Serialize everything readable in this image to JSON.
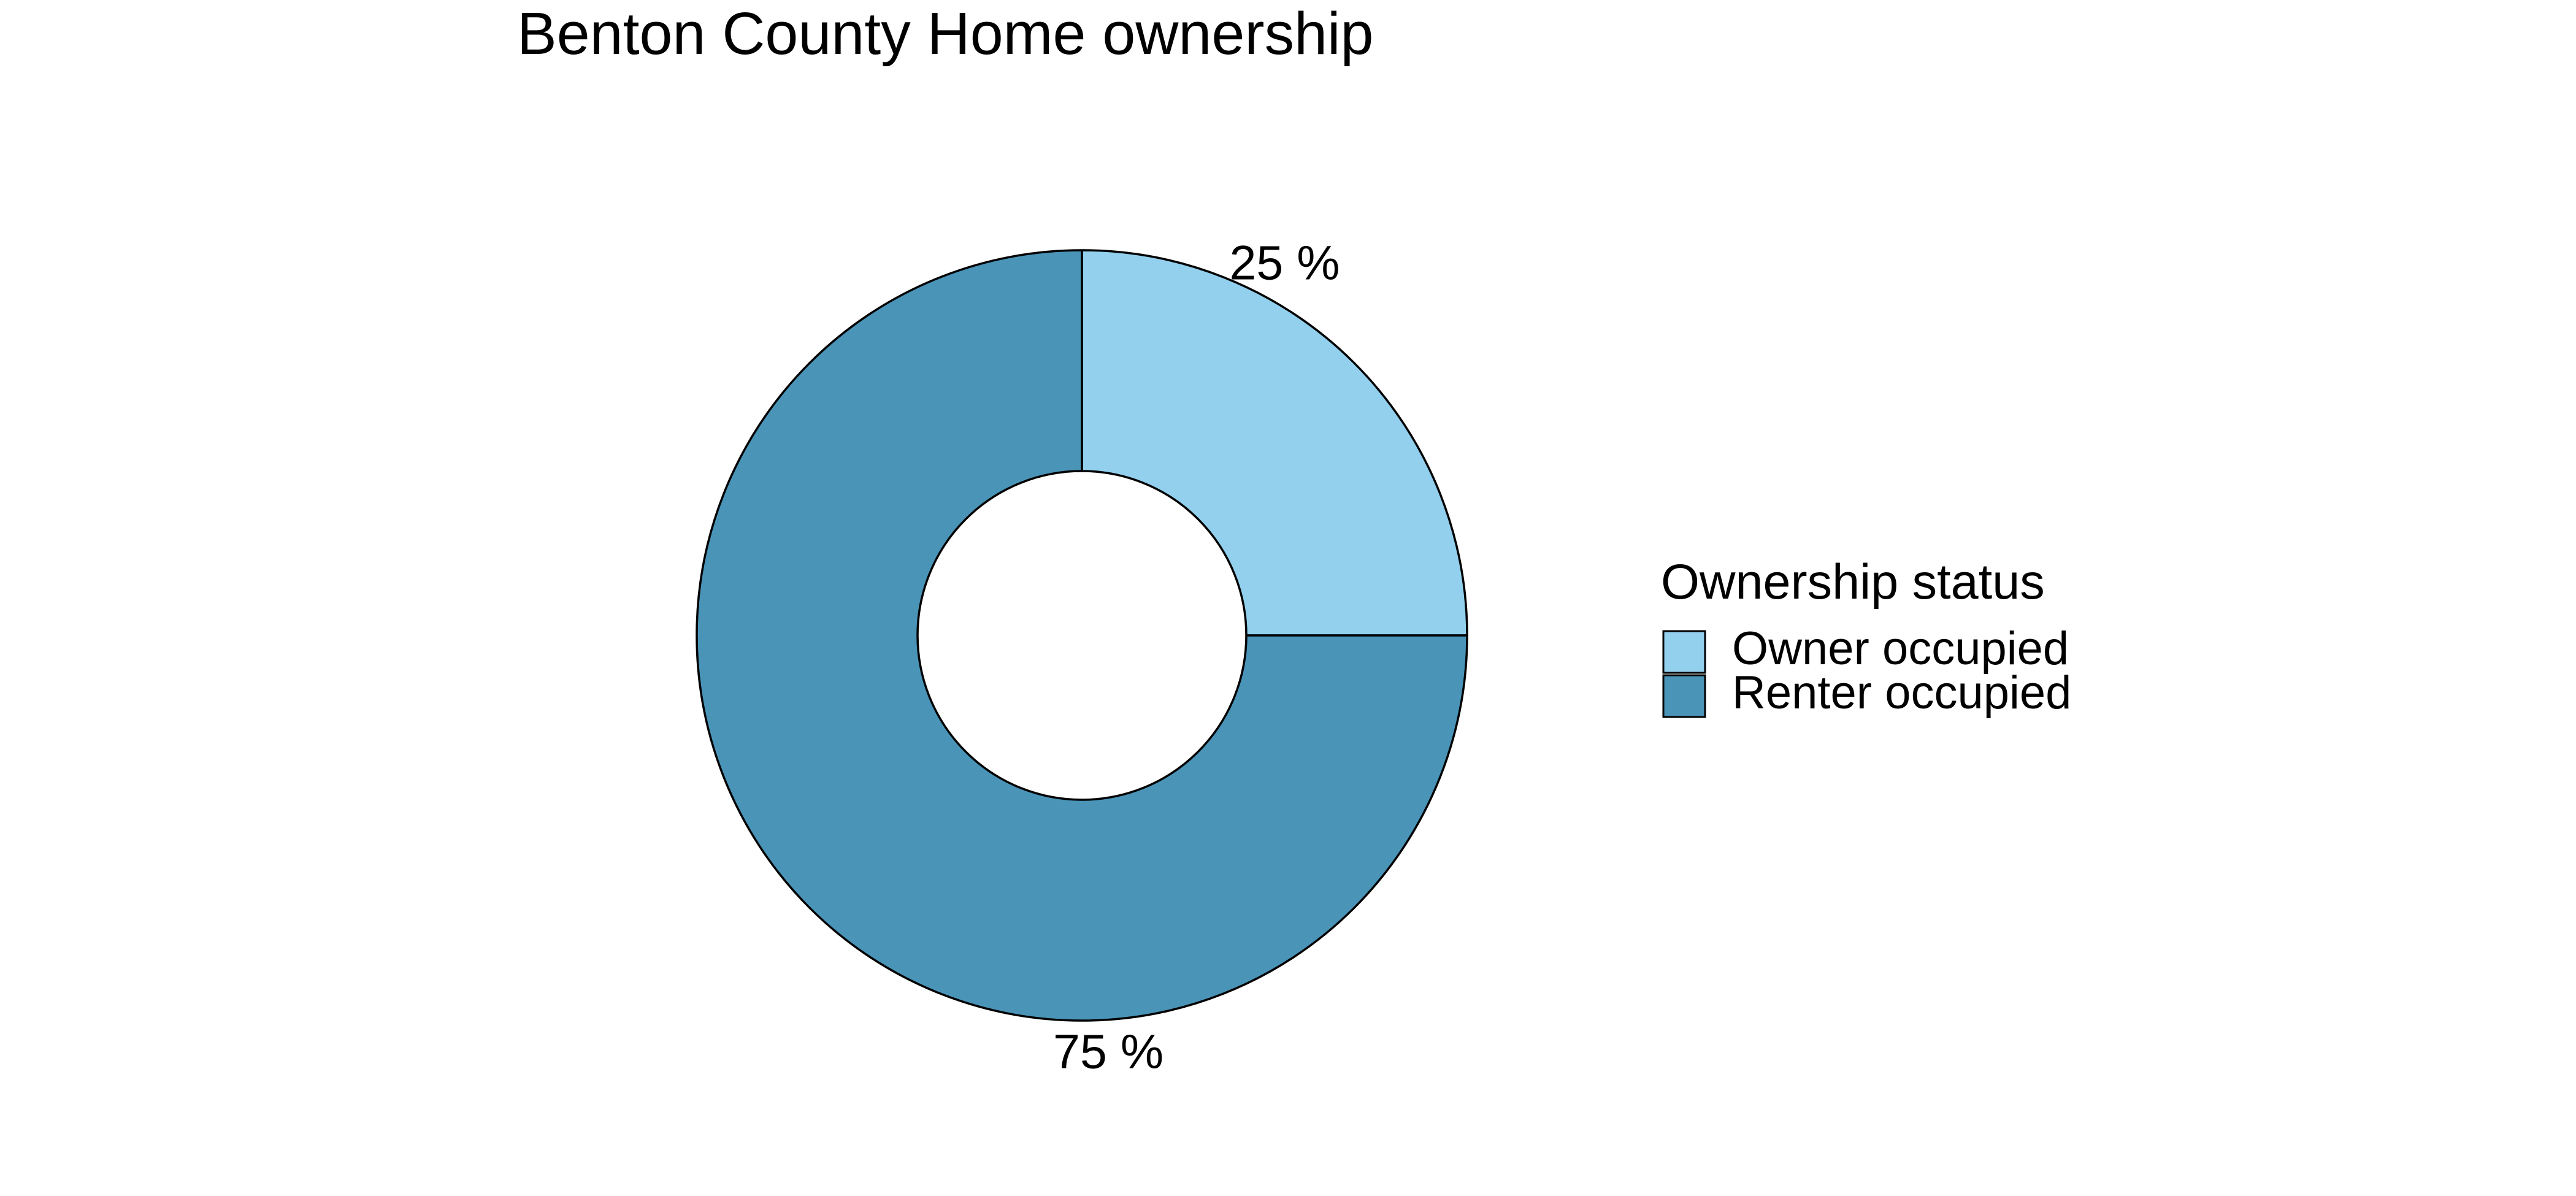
{
  "chart_data": {
    "type": "pie",
    "subtype": "donut",
    "title": "Benton County Home ownership",
    "categories": [
      "Owner occupied",
      "Renter occupied"
    ],
    "values": [
      25,
      75
    ],
    "value_labels": [
      "25 %",
      "75 %"
    ],
    "units": "%",
    "colors": [
      "#92d0ee",
      "#4a94b8"
    ],
    "start": "12 o'clock",
    "direction": "clockwise",
    "legend": {
      "title": "Ownership status",
      "placement": "right"
    }
  }
}
